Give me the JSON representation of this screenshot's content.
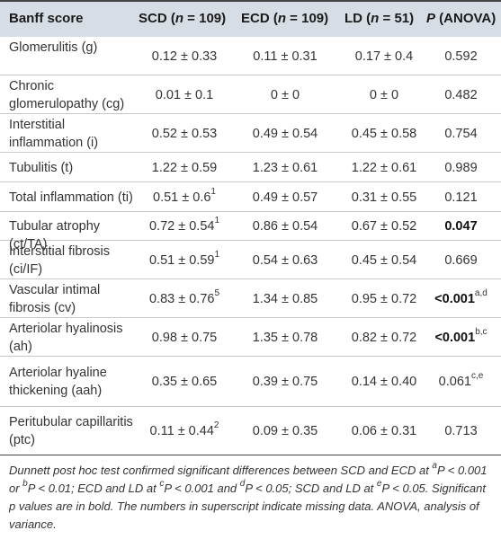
{
  "header": {
    "banff": "Banff score",
    "scd": "SCD (n = 109)",
    "ecd": "ECD (n = 109)",
    "ld": "LD (n = 51)",
    "p": "P (ANOVA)"
  },
  "rows": [
    {
      "label": "Glomerulitis (g)",
      "scd": "0.12 ± 0.33",
      "scd_sup": "",
      "ecd": "0.11 ± 0.31",
      "ld": "0.17 ± 0.4",
      "p": "0.592",
      "p_sup": "",
      "p_bold": false
    },
    {
      "label": "Chronic glomerulopathy (cg)",
      "scd": "0.01 ± 0.1",
      "scd_sup": "",
      "ecd": "0 ± 0",
      "ld": "0 ± 0",
      "p": "0.482",
      "p_sup": "",
      "p_bold": false
    },
    {
      "label": "Interstitial inflammation (i)",
      "scd": "0.52 ± 0.53",
      "scd_sup": "",
      "ecd": "0.49 ± 0.54",
      "ld": "0.45 ± 0.58",
      "p": "0.754",
      "p_sup": "",
      "p_bold": false
    },
    {
      "label": "Tubulitis (t)",
      "scd": "1.22 ± 0.59",
      "scd_sup": "",
      "ecd": "1.23 ± 0.61",
      "ld": "1.22 ± 0.61",
      "p": "0.989",
      "p_sup": "",
      "p_bold": false
    },
    {
      "label": "Total inflammation (ti)",
      "scd": "0.51 ± 0.6",
      "scd_sup": "1",
      "ecd": "0.49 ± 0.57",
      "ld": "0.31 ± 0.55",
      "p": "0.121",
      "p_sup": "",
      "p_bold": false
    },
    {
      "label": "Tubular atrophy (ct/TA)",
      "scd": "0.72 ± 0.54",
      "scd_sup": "1",
      "ecd": "0.86 ± 0.54",
      "ld": "0.67 ± 0.52",
      "p": "0.047",
      "p_sup": "",
      "p_bold": true
    },
    {
      "label": "Interstitial fibrosis (ci/IF)",
      "scd": "0.51 ± 0.59",
      "scd_sup": "1",
      "ecd": "0.54 ± 0.63",
      "ld": "0.45 ± 0.54",
      "p": "0.669",
      "p_sup": "",
      "p_bold": false
    },
    {
      "label": "Vascular intimal fibrosis (cv)",
      "scd": "0.83 ± 0.76",
      "scd_sup": "5",
      "ecd": "1.34 ± 0.85",
      "ld": "0.95 ± 0.72",
      "p": "<0.001",
      "p_sup": "a,d",
      "p_bold": true
    },
    {
      "label": "Arteriolar hyalinosis (ah)",
      "scd": "0.98 ± 0.75",
      "scd_sup": "",
      "ecd": "1.35 ± 0.78",
      "ld": "0.82 ± 0.72",
      "p": "<0.001",
      "p_sup": "b,c",
      "p_bold": true
    },
    {
      "label": "Arteriolar hyaline thickening (aah)",
      "scd": "0.35 ± 0.65",
      "scd_sup": "",
      "ecd": "0.39 ± 0.75",
      "ld": "0.14 ± 0.40",
      "p": "0.061",
      "p_sup": "c,e",
      "p_bold": false
    },
    {
      "label": "Peritubular capillaritis (ptc)",
      "scd": "0.11 ± 0.44",
      "scd_sup": "2",
      "ecd": "0.09 ± 0.35",
      "ld": "0.06 ± 0.31",
      "p": "0.713",
      "p_sup": "",
      "p_bold": false
    }
  ],
  "footnote": "Dunnett post hoc test confirmed significant differences between SCD and ECD at aP < 0.001 or bP < 0.01; ECD and LD at cP < 0.001 and dP < 0.05; SCD and LD at eP < 0.05. Significant p values are in bold. The numbers in superscript indicate missing data. ANOVA, analysis of variance."
}
